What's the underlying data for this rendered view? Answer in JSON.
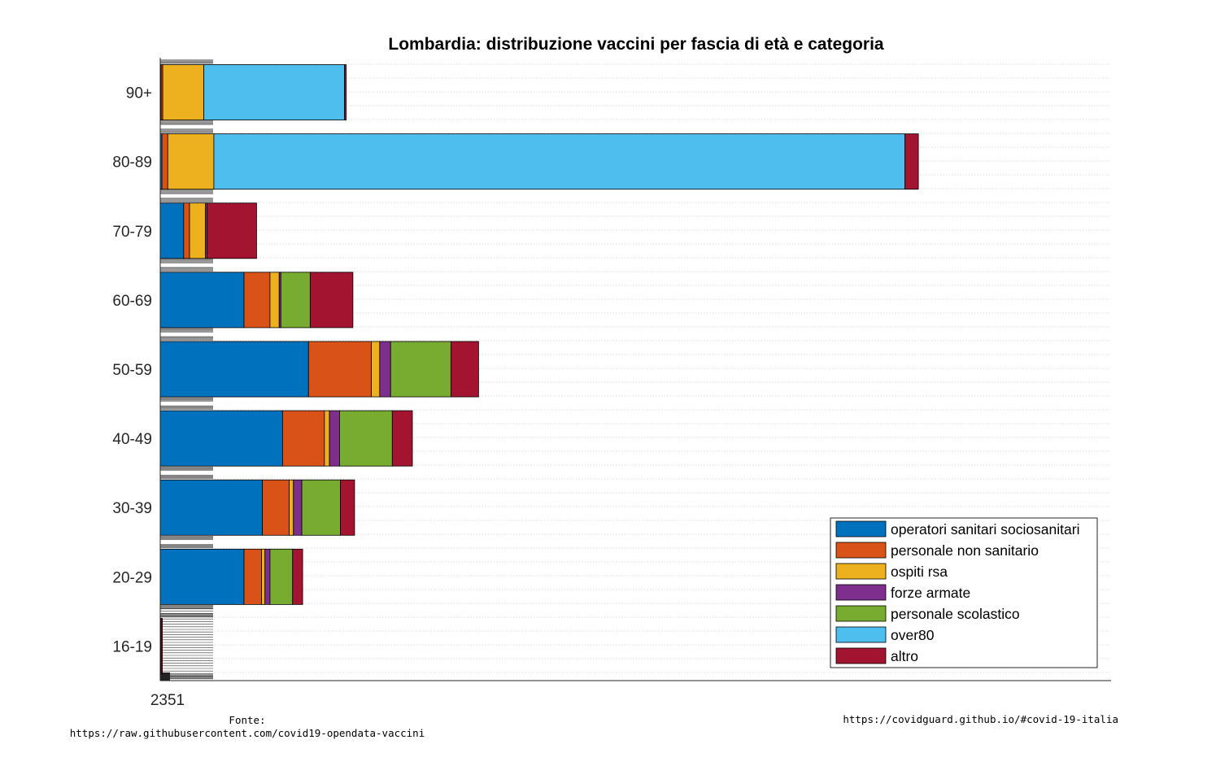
{
  "chart_data": {
    "type": "bar",
    "orientation": "horizontal",
    "stacked": true,
    "title": "Lombardia: distribuzione vaccini per fascia di età e categoria",
    "xlabel": "",
    "ylabel": "",
    "categories": [
      "16-19",
      "20-29",
      "30-39",
      "40-49",
      "50-59",
      "60-69",
      "70-79",
      "80-89",
      "90+"
    ],
    "xlim": [
      0,
      1135
    ],
    "grid": "y-dotted",
    "legend_position": "bottom-right",
    "x_tick_text": "2351",
    "series": [
      {
        "name": "operatori sanitari sociosanitari",
        "color": "#0072BD",
        "values": [
          0.5,
          100,
          122,
          146,
          177,
          100,
          28,
          2,
          1
        ]
      },
      {
        "name": "personale non sanitario",
        "color": "#D95319",
        "values": [
          0.5,
          21,
          32,
          50,
          75,
          31,
          7,
          7,
          2
        ]
      },
      {
        "name": "ospiti rsa",
        "color": "#EDB120",
        "values": [
          0,
          4,
          5,
          6,
          10,
          11,
          19,
          55,
          49
        ]
      },
      {
        "name": "forze armate",
        "color": "#7E2F8E",
        "values": [
          0,
          6,
          10,
          12,
          13,
          2,
          2,
          0,
          0
        ]
      },
      {
        "name": "personale scolastico",
        "color": "#77AC30",
        "values": [
          0,
          27,
          46,
          63,
          72,
          35,
          0,
          0,
          0
        ]
      },
      {
        "name": "over80",
        "color": "#4DBEEE",
        "values": [
          0,
          0,
          0,
          0,
          0,
          0,
          0,
          825,
          168
        ]
      },
      {
        "name": "altro",
        "color": "#A2142F",
        "values": [
          1.5,
          12,
          17,
          24,
          33,
          51,
          59,
          16,
          2
        ]
      }
    ]
  },
  "footer": {
    "source_label": "Fonte:",
    "source_url": "https://raw.githubusercontent.com/covid19-opendata-vaccini",
    "site_url": "https://covidguard.github.io/#covid-19-italia"
  }
}
